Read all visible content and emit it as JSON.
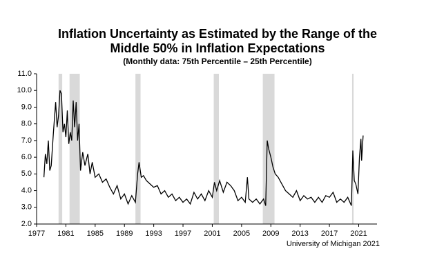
{
  "chart_data": {
    "type": "line",
    "title": [
      "Inflation Uncertainty as Estimated by the Range of the",
      "Middle 50% in Inflation Expectations"
    ],
    "subtitle": "(Monthly data:  75th Percentile – 25th Percentile)",
    "source": "University of Michigan 2021",
    "xlim": [
      1977,
      2023.5
    ],
    "xticks": [
      1977,
      1981,
      1985,
      1989,
      1993,
      1997,
      2001,
      2005,
      2009,
      2013,
      2017,
      2021
    ],
    "ylim": [
      2,
      11
    ],
    "yticks": [
      {
        "value": 2,
        "label": "2.0"
      },
      {
        "value": 3,
        "label": "3.0"
      },
      {
        "value": 4,
        "label": "4.0"
      },
      {
        "value": 5,
        "label": "5.0"
      },
      {
        "value": 6,
        "label": "6.0"
      },
      {
        "value": 7,
        "label": "7.0"
      },
      {
        "value": 8,
        "label": "8.0"
      },
      {
        "value": 9,
        "label": "9.0"
      },
      {
        "value": 10,
        "label": "10.0"
      },
      {
        "value": 11,
        "label": "11.0"
      }
    ],
    "recessions": [
      [
        1980.0,
        1980.5
      ],
      [
        1981.5,
        1982.9
      ],
      [
        1990.5,
        1991.2
      ],
      [
        2001.2,
        2001.9
      ],
      [
        2007.9,
        2009.5
      ],
      [
        2020.1,
        2020.3
      ]
    ],
    "recession_color": "#d9d9d9",
    "x": [
      1978.0,
      1978.2,
      1978.4,
      1978.6,
      1978.8,
      1979.0,
      1979.3,
      1979.6,
      1979.8,
      1980.0,
      1980.2,
      1980.4,
      1980.6,
      1980.8,
      1981.0,
      1981.2,
      1981.4,
      1981.6,
      1981.8,
      1982.0,
      1982.2,
      1982.4,
      1982.6,
      1982.8,
      1983.0,
      1983.3,
      1983.6,
      1984.0,
      1984.3,
      1984.6,
      1985.0,
      1985.5,
      1986.0,
      1986.5,
      1987.0,
      1987.5,
      1988.0,
      1988.5,
      1989.0,
      1989.5,
      1990.0,
      1990.5,
      1990.8,
      1991.0,
      1991.3,
      1991.6,
      1992.0,
      1992.5,
      1993.0,
      1993.5,
      1994.0,
      1994.5,
      1995.0,
      1995.5,
      1996.0,
      1996.5,
      1997.0,
      1997.5,
      1998.0,
      1998.5,
      1999.0,
      1999.5,
      2000.0,
      2000.5,
      2001.0,
      2001.3,
      2001.6,
      2002.0,
      2002.5,
      2003.0,
      2003.5,
      2004.0,
      2004.5,
      2005.0,
      2005.5,
      2005.8,
      2006.0,
      2006.5,
      2007.0,
      2007.5,
      2008.0,
      2008.3,
      2008.5,
      2008.7,
      2009.0,
      2009.3,
      2009.6,
      2010.0,
      2010.5,
      2011.0,
      2011.5,
      2012.0,
      2012.5,
      2013.0,
      2013.5,
      2014.0,
      2014.5,
      2015.0,
      2015.5,
      2016.0,
      2016.5,
      2017.0,
      2017.5,
      2018.0,
      2018.5,
      2019.0,
      2019.5,
      2020.0,
      2020.2,
      2020.4,
      2020.6,
      2020.9,
      2021.1,
      2021.3,
      2021.4,
      2021.6
    ],
    "series": [
      {
        "color": "#000000",
        "values": [
          4.8,
          6.2,
          5.6,
          7.0,
          5.2,
          5.5,
          7.5,
          9.3,
          7.8,
          8.5,
          10.0,
          9.8,
          7.5,
          8.0,
          7.2,
          8.8,
          6.8,
          7.5,
          7.0,
          9.4,
          7.8,
          9.3,
          7.0,
          8.0,
          5.2,
          6.3,
          5.5,
          6.2,
          5.0,
          5.7,
          4.8,
          5.0,
          4.5,
          4.7,
          4.2,
          3.8,
          4.3,
          3.5,
          3.8,
          3.2,
          3.7,
          3.3,
          5.0,
          5.7,
          4.8,
          4.9,
          4.6,
          4.4,
          4.2,
          4.3,
          3.8,
          4.0,
          3.6,
          3.8,
          3.4,
          3.6,
          3.3,
          3.5,
          3.2,
          3.9,
          3.5,
          3.8,
          3.4,
          4.0,
          3.6,
          4.5,
          4.0,
          4.6,
          3.9,
          4.5,
          4.3,
          4.0,
          3.4,
          3.6,
          3.3,
          4.8,
          3.5,
          3.3,
          3.5,
          3.2,
          3.5,
          3.1,
          7.0,
          6.5,
          6.0,
          5.4,
          5.0,
          4.8,
          4.4,
          4.0,
          3.8,
          3.6,
          4.0,
          3.4,
          3.7,
          3.5,
          3.6,
          3.3,
          3.6,
          3.3,
          3.7,
          3.6,
          3.9,
          3.3,
          3.5,
          3.3,
          3.6,
          3.1,
          6.4,
          4.6,
          4.4,
          3.8,
          6.0,
          7.1,
          5.8,
          7.3
        ]
      }
    ]
  }
}
